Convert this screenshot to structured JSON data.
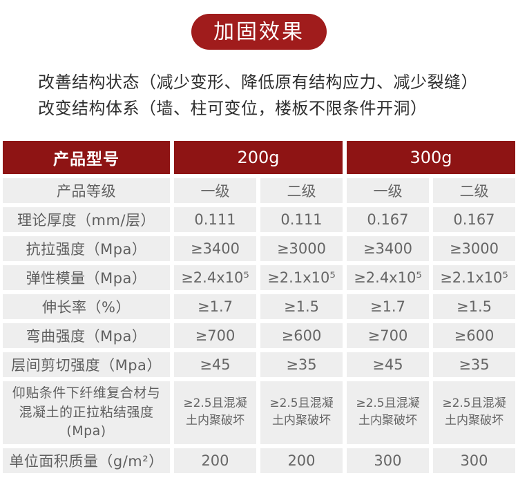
{
  "banner": {
    "label": "加固效果"
  },
  "intro": {
    "line1": "改善结构状态（减少变形、降低原有结构应力、减少裂缝）",
    "line2": "改变结构体系（墙、柱可变位，楼板不限条件开洞）"
  },
  "table": {
    "header": {
      "col1": "产品型号",
      "group1": "200g",
      "group2": "300g"
    },
    "rows": [
      {
        "label": "产品等级",
        "values": [
          "一级",
          "二级",
          "一级",
          "二级"
        ]
      },
      {
        "label": "理论厚度（mm/层）",
        "values": [
          "0.111",
          "0.111",
          "0.167",
          "0.167"
        ]
      },
      {
        "label": "抗拉强度（Mpa）",
        "values": [
          "≥3400",
          "≥3000",
          "≥3400",
          "≥3000"
        ]
      },
      {
        "label": "弹性模量（Mpa）",
        "values": [
          "≥2.4x10⁵",
          "≥2.1x10⁵",
          "≥2.4x10⁵",
          "≥2.1x10⁵"
        ]
      },
      {
        "label": "伸长率（%）",
        "values": [
          "≥1.7",
          "≥1.5",
          "≥1.7",
          "≥1.5"
        ]
      },
      {
        "label": "弯曲强度（Mpa）",
        "values": [
          "≥700",
          "≥600",
          "≥700",
          "≥600"
        ]
      },
      {
        "label": "层间剪切强度（Mpa）",
        "values": [
          "≥45",
          "≥35",
          "≥45",
          "≥35"
        ]
      },
      {
        "label": "仰贴条件下纤维复合材与混凝土的正拉粘结强度(Mpa)",
        "values": [
          "≥2.5且混凝土内聚破坏",
          "≥2.5且混凝土内聚破坏",
          "≥2.5且混凝土内聚破坏",
          "≥2.5且混凝土内聚破坏"
        ]
      },
      {
        "label": "单位面积质量（g/m²）",
        "values": [
          "200",
          "200",
          "300",
          "300"
        ]
      }
    ]
  },
  "colors": {
    "banner_red": "#a01c1c",
    "header_red": "#8e1414",
    "row_background": "#eeeeee",
    "cell_text": "#666666",
    "intro_text": "#2e2e2e"
  }
}
